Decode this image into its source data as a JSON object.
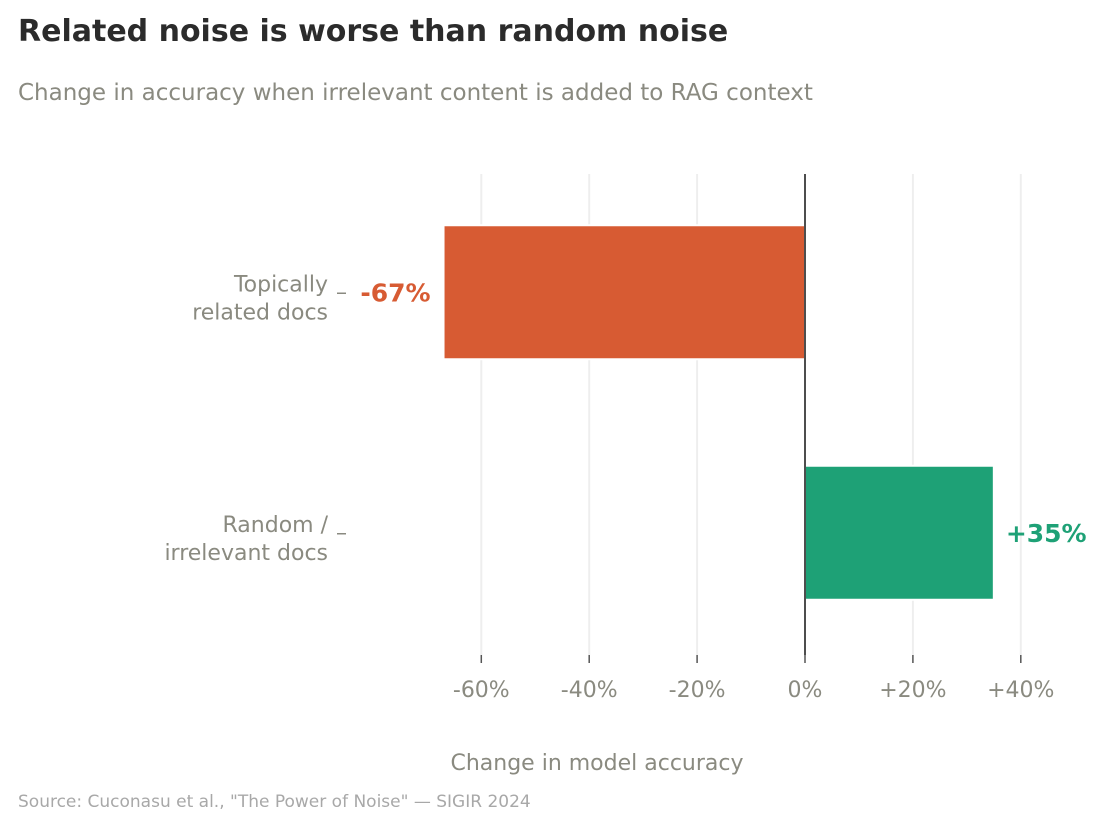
{
  "title": "Related noise is worse than random noise",
  "subtitle": "Change in accuracy when irrelevant content is added to RAG context",
  "source": "Source: Cuconasu et al., \"The Power of Noise\" — SIGIR 2024",
  "chart_data": {
    "type": "bar",
    "orientation": "horizontal",
    "categories": [
      [
        "Topically",
        "related docs"
      ],
      [
        "Random /",
        "irrelevant docs"
      ]
    ],
    "values": [
      -67,
      35
    ],
    "value_labels": [
      "-67%",
      "+35%"
    ],
    "colors": [
      "#d75b33",
      "#1ea176"
    ],
    "xlabel": "Change in model accuracy",
    "xlim": [
      -80,
      45
    ],
    "xticks": [
      -60,
      -40,
      -20,
      0,
      20,
      40
    ],
    "xtick_labels": [
      "-60%",
      "-40%",
      "-20%",
      "0%",
      "+20%",
      "+40%"
    ],
    "grid": "vertical",
    "zero_line_color": "#222222",
    "grid_color": "#eeeeee"
  }
}
